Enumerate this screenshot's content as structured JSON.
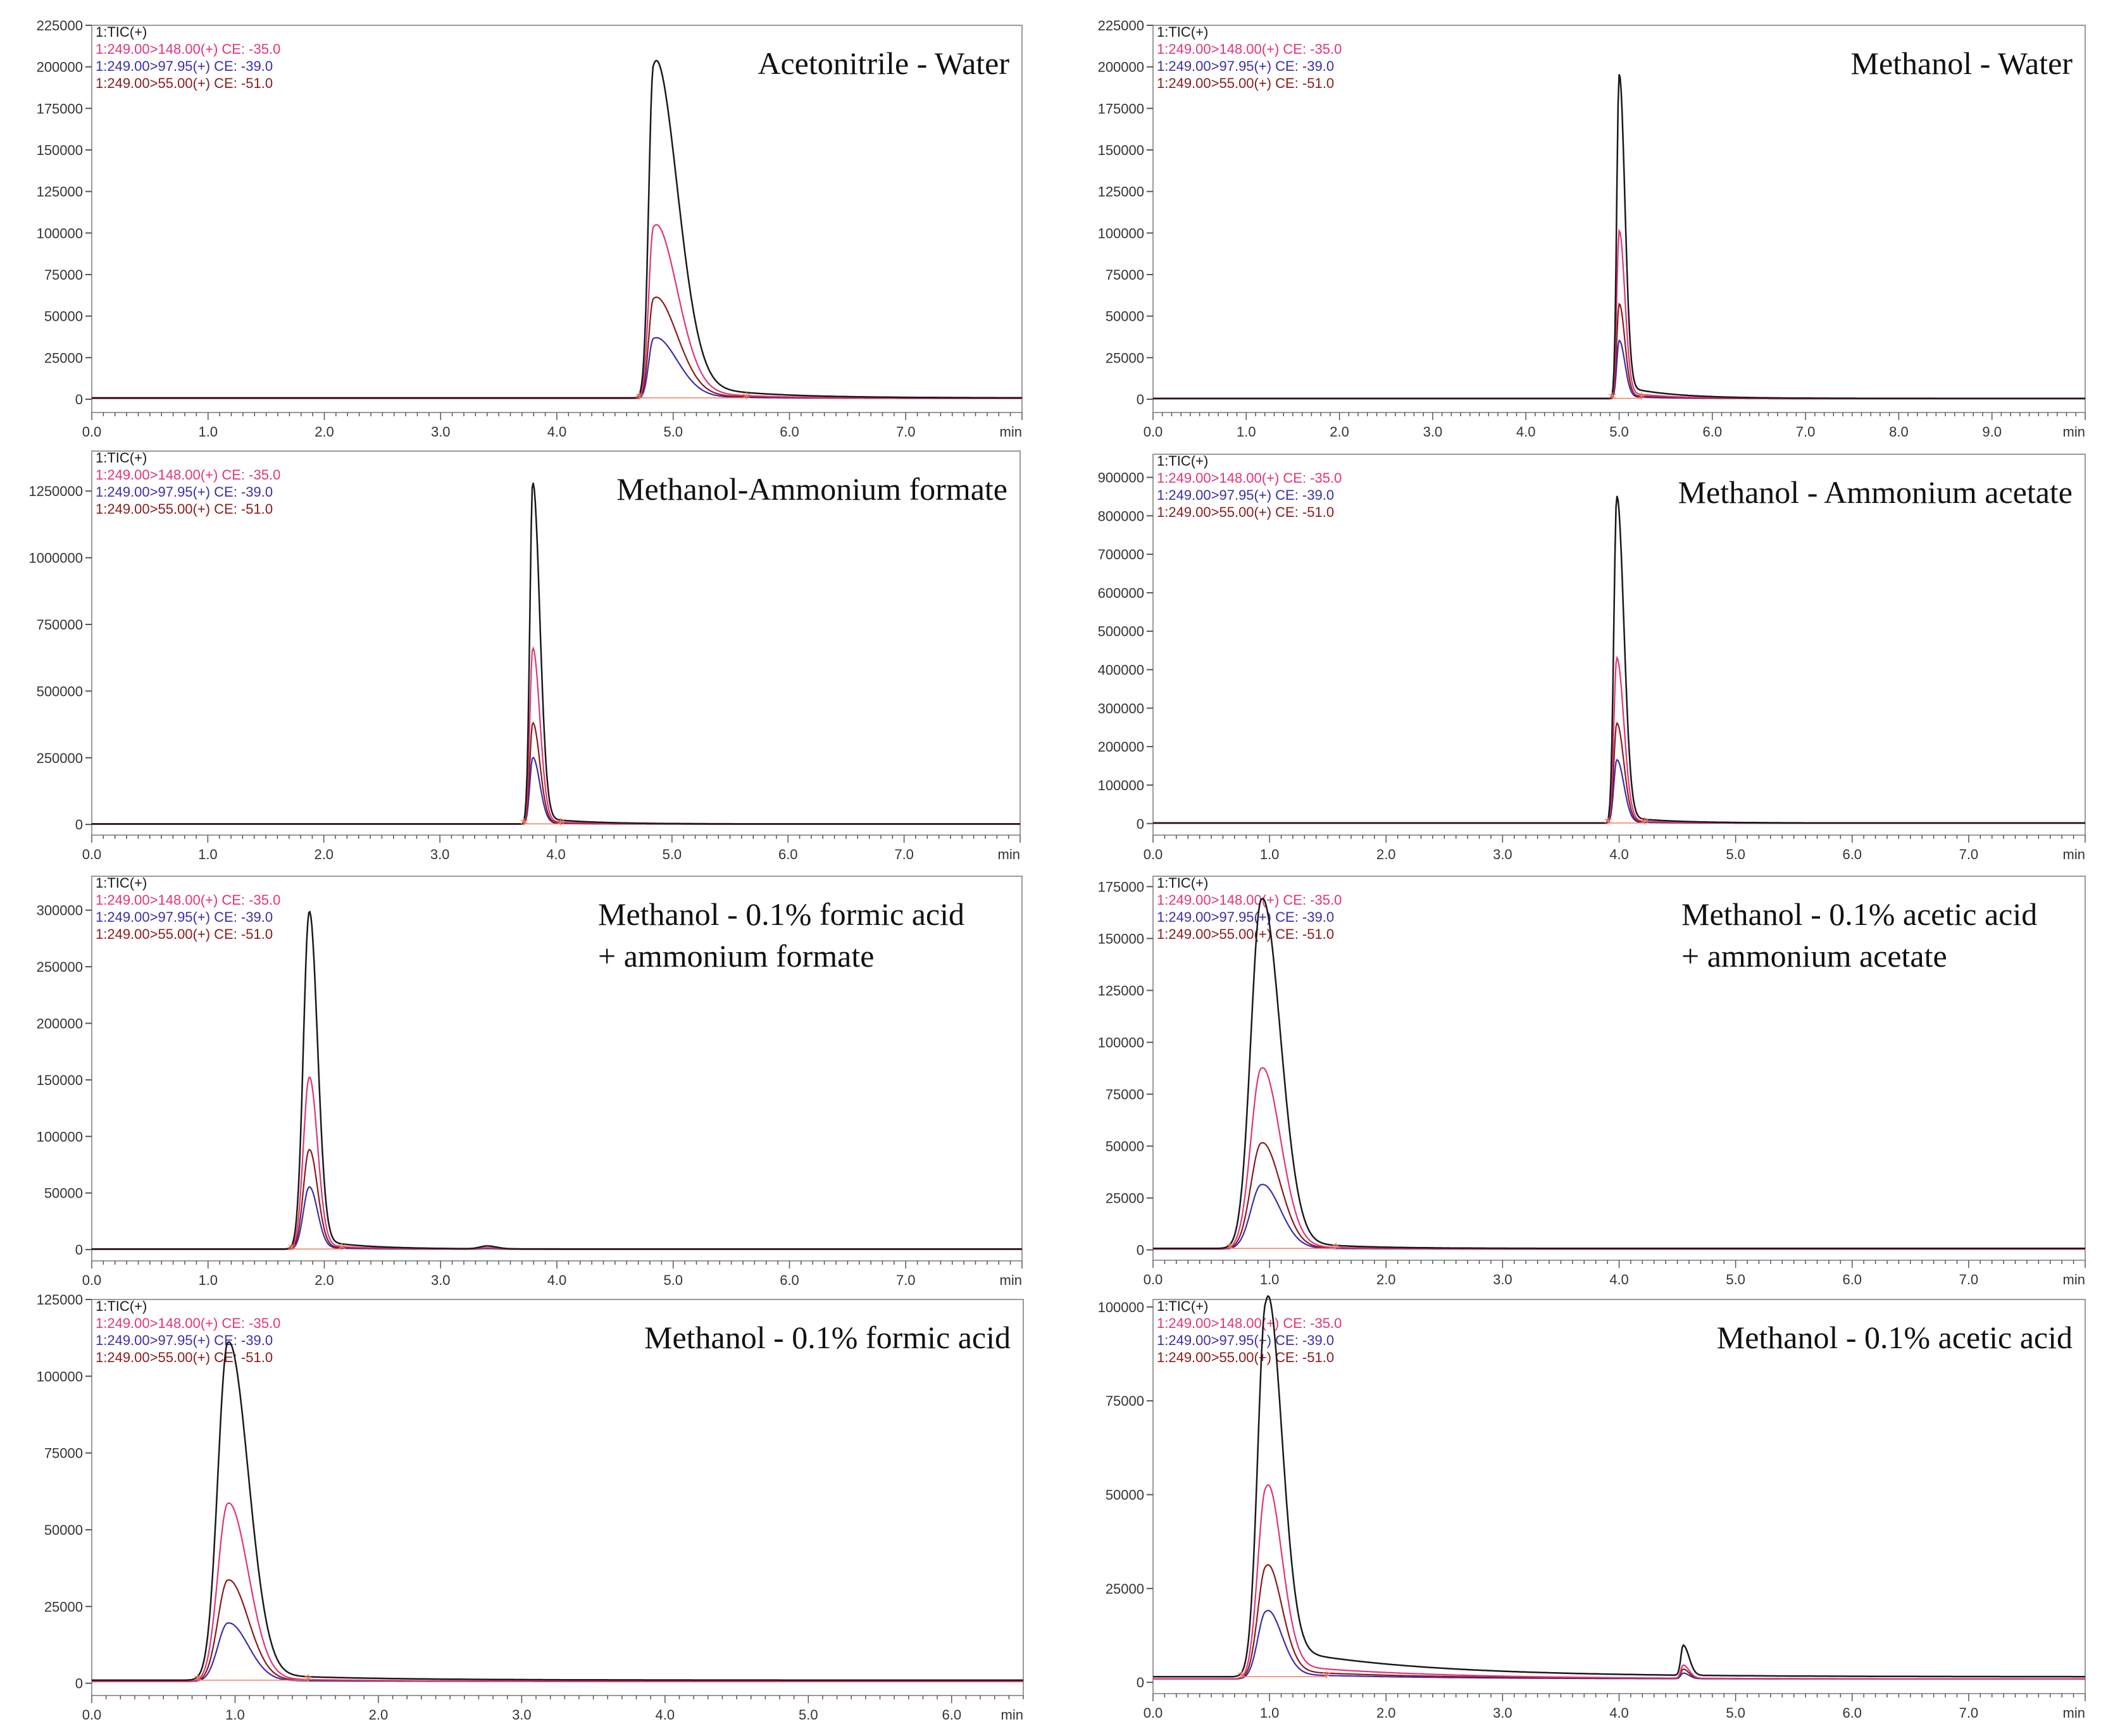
{
  "legend": [
    {
      "label": "1:TIC(+)",
      "color": "#1a1a1a"
    },
    {
      "label": "1:249.00>148.00(+) CE: -35.0",
      "color": "#e0357a"
    },
    {
      "label": "1:249.00>97.95(+) CE: -39.0",
      "color": "#3b2fa8"
    },
    {
      "label": "1:249.00>55.00(+) CE: -51.0",
      "color": "#8b1a1a"
    }
  ],
  "x_unit": "min",
  "chart_data": [
    {
      "type": "line",
      "title": [
        "Acetonitrile - Water"
      ],
      "xlim": [
        0,
        8.0
      ],
      "x_ticks": [
        "0.0",
        "1.0",
        "2.0",
        "3.0",
        "4.0",
        "5.0",
        "6.0",
        "7.0"
      ],
      "ylim": [
        -8000,
        225000
      ],
      "y_ticks": [
        "0",
        "25000",
        "50000",
        "75000",
        "100000",
        "125000",
        "150000",
        "175000",
        "200000",
        "225000"
      ],
      "peaks": [
        {
          "rt": 4.83,
          "tic": 200000,
          "q148": 103000,
          "q98": 36000,
          "q55": 60000,
          "rise": 0.04,
          "tail": 0.2,
          "tailfrac": 0.06,
          "taildecay": 0.6
        }
      ],
      "baseline": 800
    },
    {
      "type": "line",
      "title": [
        "Methanol - Water"
      ],
      "xlim": [
        0,
        10.0
      ],
      "x_ticks": [
        "0.0",
        "1.0",
        "2.0",
        "3.0",
        "4.0",
        "5.0",
        "6.0",
        "7.0",
        "8.0",
        "9.0"
      ],
      "ylim": [
        -8000,
        225000
      ],
      "y_ticks": [
        "0",
        "25000",
        "50000",
        "75000",
        "100000",
        "125000",
        "150000",
        "175000",
        "200000",
        "225000"
      ],
      "peaks": [
        {
          "rt": 5.0,
          "tic": 195000,
          "q148": 101000,
          "q98": 35000,
          "q55": 57000,
          "rise": 0.025,
          "tail": 0.06,
          "tailfrac": 0.04,
          "taildecay": 0.5
        }
      ],
      "baseline": 500
    },
    {
      "type": "line",
      "title": [
        "Methanol-Ammonium formate"
      ],
      "xlim": [
        0,
        8.0
      ],
      "x_ticks": [
        "0.0",
        "1.0",
        "2.0",
        "3.0",
        "4.0",
        "5.0",
        "6.0",
        "7.0"
      ],
      "ylim": [
        -40000,
        1400000
      ],
      "y_ticks": [
        "0",
        "250000",
        "500000",
        "750000",
        "1000000",
        "1250000"
      ],
      "peaks": [
        {
          "rt": 3.8,
          "tic": 1280000,
          "q148": 660000,
          "q98": 250000,
          "q55": 380000,
          "rise": 0.025,
          "tail": 0.06,
          "tailfrac": 0.02,
          "taildecay": 0.4
        }
      ],
      "baseline": 2000
    },
    {
      "type": "line",
      "title": [
        "Methanol - Ammonium acetate"
      ],
      "xlim": [
        0,
        8.0
      ],
      "x_ticks": [
        "0.0",
        "1.0",
        "2.0",
        "3.0",
        "4.0",
        "5.0",
        "6.0",
        "7.0"
      ],
      "ylim": [
        -30000,
        960000
      ],
      "y_ticks": [
        "0",
        "100000",
        "200000",
        "300000",
        "400000",
        "500000",
        "600000",
        "700000",
        "800000",
        "900000"
      ],
      "peaks": [
        {
          "rt": 3.98,
          "tic": 850000,
          "q148": 430000,
          "q98": 165000,
          "q55": 260000,
          "rise": 0.025,
          "tail": 0.06,
          "tailfrac": 0.02,
          "taildecay": 0.4
        }
      ],
      "baseline": 1500
    },
    {
      "type": "line",
      "title": [
        "Methanol - 0.1% formic acid",
        "+ ammonium formate"
      ],
      "xlim": [
        0,
        8.0
      ],
      "x_ticks": [
        "0.0",
        "1.0",
        "2.0",
        "3.0",
        "4.0",
        "5.0",
        "6.0",
        "7.0"
      ],
      "ylim": [
        -10000,
        330000
      ],
      "y_ticks": [
        "0",
        "50000",
        "100000",
        "150000",
        "200000",
        "250000",
        "300000"
      ],
      "peaks": [
        {
          "rt": 1.87,
          "tic": 298000,
          "q148": 152000,
          "q98": 55000,
          "q55": 88000,
          "rise": 0.05,
          "tail": 0.07,
          "tailfrac": 0.03,
          "taildecay": 0.4
        },
        {
          "rt": 3.4,
          "tic": 2500,
          "q148": 1200,
          "q98": 500,
          "q55": 800,
          "rise": 0.06,
          "tail": 0.08,
          "tailfrac": 0,
          "taildecay": 0.4
        }
      ],
      "baseline": 500
    },
    {
      "type": "line",
      "title": [
        "Methanol - 0.1% acetic acid",
        "+ ammonium acetate"
      ],
      "xlim": [
        0,
        8.0
      ],
      "x_ticks": [
        "0.0",
        "1.0",
        "2.0",
        "3.0",
        "4.0",
        "5.0",
        "6.0",
        "7.0"
      ],
      "ylim": [
        -5000,
        180000
      ],
      "y_ticks": [
        "0",
        "25000",
        "50000",
        "75000",
        "100000",
        "125000",
        "150000",
        "175000"
      ],
      "peaks": [
        {
          "rt": 0.93,
          "tic": 168000,
          "q148": 87000,
          "q98": 31000,
          "q55": 51000,
          "rise": 0.09,
          "tail": 0.16,
          "tailfrac": 0.03,
          "taildecay": 0.5
        }
      ],
      "baseline": 700
    },
    {
      "type": "line",
      "title": [
        "Methanol - 0.1% formic acid"
      ],
      "xlim": [
        0,
        6.5
      ],
      "x_ticks": [
        "0.0",
        "1.0",
        "2.0",
        "3.0",
        "4.0",
        "5.0",
        "6.0"
      ],
      "ylim": [
        -4000,
        125000
      ],
      "y_ticks": [
        "0",
        "25000",
        "50000",
        "75000",
        "100000",
        "125000"
      ],
      "peaks": [
        {
          "rt": 0.95,
          "tic": 110000,
          "q148": 58000,
          "q98": 19000,
          "q55": 33000,
          "rise": 0.07,
          "tail": 0.14,
          "tailfrac": 0.02,
          "taildecay": 0.8
        }
      ],
      "baseline": 1000
    },
    {
      "type": "line",
      "title": [
        "Methanol - 0.1% acetic acid"
      ],
      "xlim": [
        0,
        8.0
      ],
      "x_ticks": [
        "0.0",
        "1.0",
        "2.0",
        "3.0",
        "4.0",
        "5.0",
        "6.0",
        "7.0"
      ],
      "ylim": [
        -3000,
        102000
      ],
      "y_ticks": [
        "0",
        "25000",
        "50000",
        "75000",
        "100000"
      ],
      "peaks": [
        {
          "rt": 0.97,
          "tic": 100000,
          "q148": 51000,
          "q98": 18000,
          "q55": 30000,
          "rise": 0.07,
          "tail": 0.13,
          "tailfrac": 0.08,
          "taildecay": 1.2
        },
        {
          "rt": 4.55,
          "tic": 8000,
          "q148": 3500,
          "q98": 1500,
          "q55": 2500,
          "rise": 0.02,
          "tail": 0.05,
          "tailfrac": 0,
          "taildecay": 0.4
        }
      ],
      "baseline": 1500
    }
  ]
}
